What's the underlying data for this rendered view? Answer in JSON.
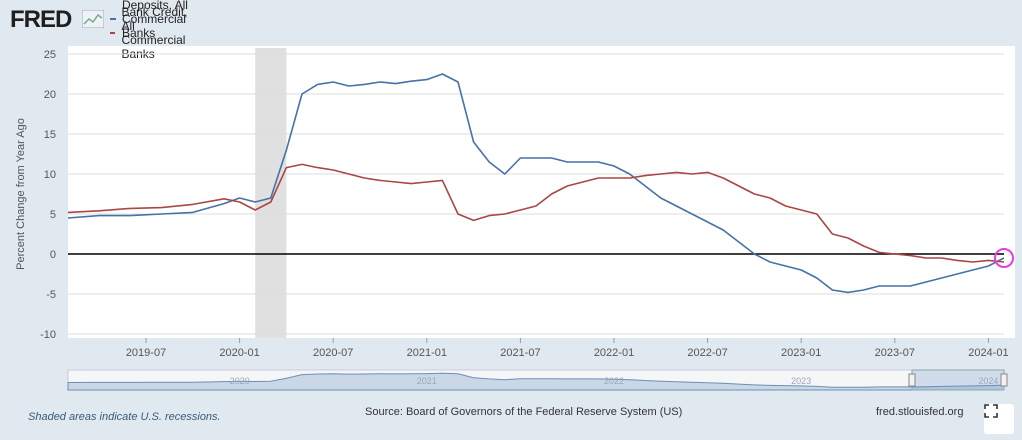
{
  "header": {
    "logo_text": "FRED",
    "logo_icon": "fred-chart-icon"
  },
  "colors": {
    "deposits": "#4572a7",
    "bank_credit": "#aa4643",
    "recession": "#e0e0e0",
    "highlight": "#e63ce6"
  },
  "chart_data": {
    "type": "line",
    "ylabel": "Percent Change from Year Ago",
    "ylim": [
      -10,
      25
    ],
    "yticks": [
      25,
      20,
      15,
      10,
      5,
      0,
      -5,
      -10
    ],
    "xlim": [
      "2019-02",
      "2024-02"
    ],
    "xtick_labels": [
      "2019-07",
      "2020-01",
      "2020-07",
      "2021-01",
      "2021-07",
      "2022-01",
      "2022-07",
      "2023-01",
      "2023-07",
      "2024-01"
    ],
    "recession": {
      "start": "2020-02",
      "end": "2020-04"
    },
    "series": [
      {
        "name": "Deposits, All Commercial Banks",
        "x": [
          "2019-02",
          "2019-04",
          "2019-06",
          "2019-08",
          "2019-10",
          "2019-12",
          "2020-01",
          "2020-02",
          "2020-03",
          "2020-04",
          "2020-05",
          "2020-06",
          "2020-07",
          "2020-08",
          "2020-09",
          "2020-10",
          "2020-11",
          "2020-12",
          "2021-01",
          "2021-02",
          "2021-03",
          "2021-04",
          "2021-05",
          "2021-06",
          "2021-07",
          "2021-08",
          "2021-09",
          "2021-10",
          "2021-11",
          "2021-12",
          "2022-01",
          "2022-02",
          "2022-03",
          "2022-04",
          "2022-05",
          "2022-06",
          "2022-07",
          "2022-08",
          "2022-09",
          "2022-10",
          "2022-11",
          "2022-12",
          "2023-01",
          "2023-02",
          "2023-03",
          "2023-04",
          "2023-05",
          "2023-06",
          "2023-07",
          "2023-08",
          "2023-09",
          "2023-10",
          "2023-11",
          "2023-12",
          "2024-01",
          "2024-02"
        ],
        "values": [
          4.5,
          4.8,
          4.8,
          5.0,
          5.2,
          6.3,
          7.0,
          6.5,
          7.0,
          13.0,
          20.0,
          21.2,
          21.5,
          21.0,
          21.2,
          21.5,
          21.3,
          21.6,
          21.8,
          22.5,
          21.5,
          14.0,
          11.5,
          10.0,
          12.0,
          12.0,
          12.0,
          11.5,
          11.5,
          11.5,
          11.0,
          10.0,
          8.5,
          7.0,
          6.0,
          5.0,
          4.0,
          3.0,
          1.5,
          0.0,
          -1.0,
          -1.5,
          -2.0,
          -3.0,
          -4.5,
          -4.8,
          -4.5,
          -4.0,
          -4.0,
          -4.0,
          -3.5,
          -3.0,
          -2.5,
          -2.0,
          -1.5,
          -0.5
        ]
      },
      {
        "name": "Bank Credit, All Commercial Banks",
        "x": [
          "2019-02",
          "2019-04",
          "2019-06",
          "2019-08",
          "2019-10",
          "2019-12",
          "2020-01",
          "2020-02",
          "2020-03",
          "2020-04",
          "2020-05",
          "2020-06",
          "2020-07",
          "2020-08",
          "2020-09",
          "2020-10",
          "2020-11",
          "2020-12",
          "2021-01",
          "2021-02",
          "2021-03",
          "2021-04",
          "2021-05",
          "2021-06",
          "2021-07",
          "2021-08",
          "2021-09",
          "2021-10",
          "2021-11",
          "2021-12",
          "2022-01",
          "2022-02",
          "2022-03",
          "2022-04",
          "2022-05",
          "2022-06",
          "2022-07",
          "2022-08",
          "2022-09",
          "2022-10",
          "2022-11",
          "2022-12",
          "2023-01",
          "2023-02",
          "2023-03",
          "2023-04",
          "2023-05",
          "2023-06",
          "2023-07",
          "2023-08",
          "2023-09",
          "2023-10",
          "2023-11",
          "2023-12",
          "2024-01",
          "2024-02"
        ],
        "values": [
          5.2,
          5.4,
          5.7,
          5.8,
          6.2,
          6.9,
          6.5,
          5.5,
          6.5,
          10.8,
          11.2,
          10.8,
          10.5,
          10.0,
          9.5,
          9.2,
          9.0,
          8.8,
          9.0,
          9.2,
          5.0,
          4.2,
          4.8,
          5.0,
          5.5,
          6.0,
          7.5,
          8.5,
          9.0,
          9.5,
          9.5,
          9.5,
          9.8,
          10.0,
          10.2,
          10.0,
          10.2,
          9.5,
          8.5,
          7.5,
          7.0,
          6.0,
          5.5,
          5.0,
          2.5,
          2.0,
          1.0,
          0.2,
          0.0,
          -0.2,
          -0.5,
          -0.5,
          -0.8,
          -1.0,
          -0.8,
          -1.0
        ]
      }
    ]
  },
  "navigator": {
    "labels": [
      "2020",
      "2021",
      "2022",
      "2023",
      "2024"
    ]
  },
  "footer": {
    "note": "Shaded areas indicate U.S. recessions.",
    "source": "Source: Board of Governors of the Federal Reserve System (US)",
    "url": "fred.stlouisfed.org"
  }
}
